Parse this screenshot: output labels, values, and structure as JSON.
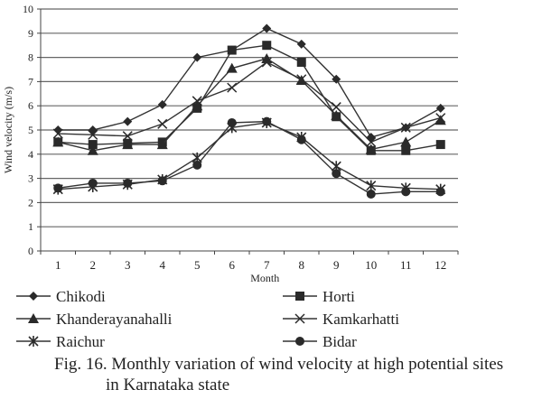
{
  "chart_data": {
    "type": "line",
    "title": "",
    "xlabel": "Month",
    "ylabel": "Wind velocity (m/s)",
    "ylim": [
      0,
      10
    ],
    "yticks": [
      "0",
      "1",
      "2",
      "3",
      "4",
      "5",
      "6",
      "7",
      "8",
      "9",
      "10"
    ],
    "categories": [
      "1",
      "2",
      "3",
      "4",
      "5",
      "6",
      "7",
      "8",
      "9",
      "10",
      "11",
      "12"
    ],
    "grid": true,
    "legend_placement": "bottom",
    "series": [
      {
        "name": "Chikodi",
        "marker": "diamond",
        "values": [
          5.0,
          5.0,
          5.35,
          6.05,
          8.0,
          8.3,
          9.2,
          8.55,
          7.1,
          4.7,
          5.1,
          5.9
        ]
      },
      {
        "name": "Horti",
        "marker": "square",
        "values": [
          4.5,
          4.4,
          4.45,
          4.5,
          5.9,
          8.3,
          8.5,
          7.8,
          5.55,
          4.15,
          4.15,
          4.4
        ]
      },
      {
        "name": "Khanderayanahalli",
        "marker": "triangle",
        "values": [
          4.5,
          4.15,
          4.4,
          4.4,
          6.0,
          7.55,
          7.95,
          7.05,
          5.6,
          4.2,
          4.5,
          5.4
        ]
      },
      {
        "name": "Kamkarhatti",
        "marker": "x",
        "values": [
          4.85,
          4.8,
          4.75,
          5.25,
          6.2,
          6.75,
          7.8,
          7.1,
          5.95,
          4.5,
          5.1,
          5.5
        ]
      },
      {
        "name": "Raichur",
        "marker": "star",
        "values": [
          2.55,
          2.65,
          2.75,
          2.95,
          3.85,
          5.1,
          5.3,
          4.7,
          3.5,
          2.7,
          2.6,
          2.55
        ]
      },
      {
        "name": "Bidar",
        "marker": "circle",
        "values": [
          2.6,
          2.8,
          2.8,
          2.9,
          3.55,
          5.3,
          5.35,
          4.6,
          3.2,
          2.35,
          2.45,
          2.45
        ]
      }
    ]
  },
  "caption": {
    "line1": "Fig. 16. Monthly variation of wind velocity at high potential sites",
    "line2": "in Karnataka state"
  }
}
